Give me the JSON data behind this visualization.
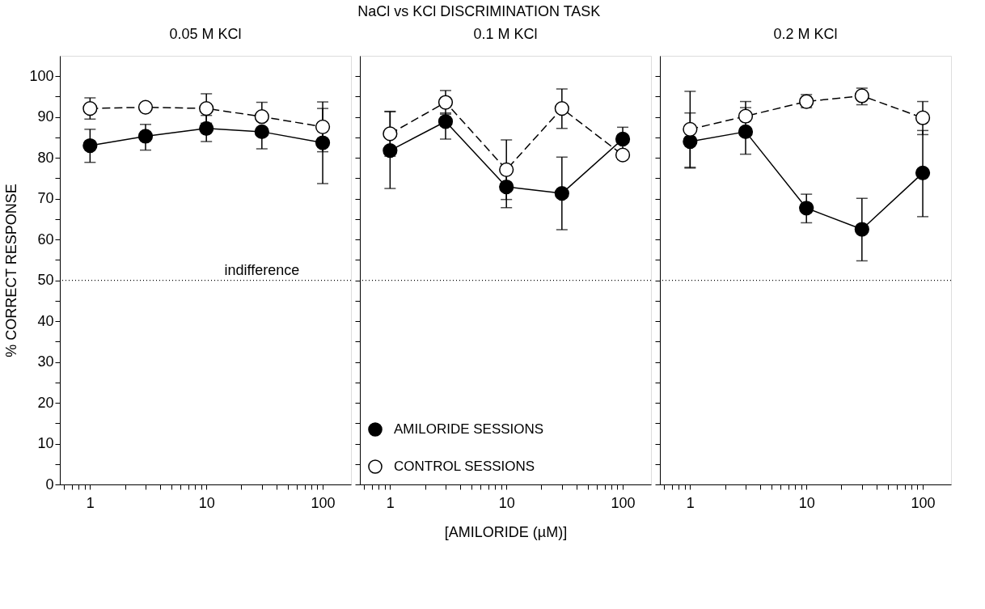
{
  "chart_data": [
    {
      "type": "line",
      "subtitle": "0.05 M KCl",
      "ylabel": "% CORRECT RESPONSE",
      "x": [
        1,
        3,
        10,
        30,
        100
      ],
      "log": "x",
      "xlim": [
        0.55,
        175
      ],
      "ylim": [
        0,
        105
      ],
      "xticks": [
        {
          "value": 0.6,
          "label": null
        },
        {
          "value": 0.7,
          "label": null
        },
        {
          "value": 0.8,
          "label": null
        },
        {
          "value": 0.9,
          "label": null
        },
        1,
        {
          "value": 2,
          "label": null
        },
        {
          "value": 3,
          "label": null
        },
        {
          "value": 4,
          "label": null
        },
        {
          "value": 5,
          "label": null
        },
        {
          "value": 6,
          "label": null
        },
        {
          "value": 7,
          "label": null
        },
        {
          "value": 8,
          "label": null
        },
        {
          "value": 9,
          "label": null
        },
        10,
        {
          "value": 20,
          "label": null
        },
        {
          "value": 30,
          "label": null
        },
        {
          "value": 40,
          "label": null
        },
        {
          "value": 50,
          "label": null
        },
        {
          "value": 60,
          "label": null
        },
        {
          "value": 70,
          "label": null
        },
        {
          "value": 80,
          "label": null
        },
        {
          "value": 90,
          "label": null
        },
        100
      ],
      "yticks": [
        0,
        {
          "value": 5,
          "label": null
        },
        10,
        {
          "value": 15,
          "label": null
        },
        20,
        {
          "value": 25,
          "label": null
        },
        30,
        {
          "value": 35,
          "label": null
        },
        40,
        {
          "value": 45,
          "label": null
        },
        50,
        {
          "value": 55,
          "label": null
        },
        60,
        {
          "value": 65,
          "label": null
        },
        70,
        {
          "value": 75,
          "label": null
        },
        80,
        {
          "value": 85,
          "label": null
        },
        90,
        {
          "value": 95,
          "label": null
        },
        100
      ],
      "grid": false,
      "marker": "circle",
      "series": [
        {
          "color": "#000000",
          "line_style": "solid",
          "values": [
            83.0,
            85.3,
            87.2,
            86.4,
            83.7
          ],
          "errors": [
            [
              78.9,
              87.0
            ],
            [
              81.9,
              88.2
            ],
            [
              84.0,
              90.4
            ],
            [
              82.2,
              86.4
            ],
            [
              73.7,
              92.1
            ]
          ]
        },
        {
          "color": "#ffffff",
          "line_style": "dashed",
          "values": [
            92.1,
            92.4,
            92.1,
            90.1,
            87.6
          ],
          "errors": [
            [
              89.5,
              94.7
            ],
            null,
            [
              88.5,
              95.7
            ],
            [
              90.1,
              93.6
            ],
            [
              81.5,
              93.7
            ]
          ]
        }
      ],
      "ref_lines": [
        {
          "axis": "y",
          "value": 50,
          "line_style": "dotted"
        }
      ],
      "annotations": [
        {
          "text": "indifference",
          "x": 30,
          "y": 50
        }
      ]
    },
    {
      "type": "line",
      "title": "NaCl vs KCl DISCRIMINATION TASK",
      "subtitle": "0.1 M KCl",
      "xlabel": "[AMILORIDE (µM)]",
      "x": [
        1,
        3,
        10,
        30,
        100
      ],
      "log": "x",
      "xlim": [
        0.55,
        175
      ],
      "ylim": [
        0,
        105
      ],
      "tick_labels": "x",
      "xticks": [
        {
          "value": 0.6,
          "label": null
        },
        {
          "value": 0.7,
          "label": null
        },
        {
          "value": 0.8,
          "label": null
        },
        {
          "value": 0.9,
          "label": null
        },
        1,
        {
          "value": 2,
          "label": null
        },
        {
          "value": 3,
          "label": null
        },
        {
          "value": 4,
          "label": null
        },
        {
          "value": 5,
          "label": null
        },
        {
          "value": 6,
          "label": null
        },
        {
          "value": 7,
          "label": null
        },
        {
          "value": 8,
          "label": null
        },
        {
          "value": 9,
          "label": null
        },
        10,
        {
          "value": 20,
          "label": null
        },
        {
          "value": 30,
          "label": null
        },
        {
          "value": 40,
          "label": null
        },
        {
          "value": 50,
          "label": null
        },
        {
          "value": 60,
          "label": null
        },
        {
          "value": 70,
          "label": null
        },
        {
          "value": 80,
          "label": null
        },
        {
          "value": 90,
          "label": null
        },
        100
      ],
      "yticks": [
        0,
        {
          "value": 5,
          "label": null
        },
        10,
        {
          "value": 15,
          "label": null
        },
        20,
        {
          "value": 25,
          "label": null
        },
        30,
        {
          "value": 35,
          "label": null
        },
        40,
        {
          "value": 45,
          "label": null
        },
        50,
        {
          "value": 55,
          "label": null
        },
        60,
        {
          "value": 65,
          "label": null
        },
        70,
        {
          "value": 75,
          "label": null
        },
        80,
        {
          "value": 85,
          "label": null
        },
        90,
        {
          "value": 95,
          "label": null
        },
        100
      ],
      "grid": false,
      "marker": "circle",
      "legend": "bottom left",
      "series": [
        {
          "name": "AMILORIDE SESSIONS",
          "color": "#000000",
          "line_style": "solid",
          "values": [
            81.8,
            88.9,
            72.9,
            71.3,
            84.6
          ],
          "errors": [
            [
              72.5,
              91.3
            ],
            [
              84.6,
              91.0
            ],
            [
              67.8,
              78.0
            ],
            [
              62.4,
              80.2
            ],
            [
              81.7,
              87.5
            ]
          ]
        },
        {
          "name": "CONTROL SESSIONS",
          "color": "#ffffff",
          "line_style": "dashed",
          "values": [
            85.9,
            93.6,
            77.1,
            92.1,
            80.7
          ],
          "errors": [
            [
              80.4,
              91.4
            ],
            [
              90.7,
              96.5
            ],
            [
              69.8,
              84.4
            ],
            [
              87.2,
              96.9
            ],
            null
          ]
        }
      ],
      "ref_lines": [
        {
          "axis": "y",
          "value": 50,
          "line_style": "dotted"
        }
      ]
    },
    {
      "type": "line",
      "subtitle": "0.2 M KCl",
      "x": [
        1,
        3,
        10,
        30,
        100
      ],
      "log": "x",
      "xlim": [
        0.55,
        175
      ],
      "ylim": [
        0,
        105
      ],
      "tick_labels": "x",
      "xticks": [
        {
          "value": 0.6,
          "label": null
        },
        {
          "value": 0.7,
          "label": null
        },
        {
          "value": 0.8,
          "label": null
        },
        {
          "value": 0.9,
          "label": null
        },
        1,
        {
          "value": 2,
          "label": null
        },
        {
          "value": 3,
          "label": null
        },
        {
          "value": 4,
          "label": null
        },
        {
          "value": 5,
          "label": null
        },
        {
          "value": 6,
          "label": null
        },
        {
          "value": 7,
          "label": null
        },
        {
          "value": 8,
          "label": null
        },
        {
          "value": 9,
          "label": null
        },
        10,
        {
          "value": 20,
          "label": null
        },
        {
          "value": 30,
          "label": null
        },
        {
          "value": 40,
          "label": null
        },
        {
          "value": 50,
          "label": null
        },
        {
          "value": 60,
          "label": null
        },
        {
          "value": 70,
          "label": null
        },
        {
          "value": 80,
          "label": null
        },
        {
          "value": 90,
          "label": null
        },
        100
      ],
      "yticks": [
        0,
        {
          "value": 5,
          "label": null
        },
        10,
        {
          "value": 15,
          "label": null
        },
        20,
        {
          "value": 25,
          "label": null
        },
        30,
        {
          "value": 35,
          "label": null
        },
        40,
        {
          "value": 45,
          "label": null
        },
        50,
        {
          "value": 55,
          "label": null
        },
        60,
        {
          "value": 65,
          "label": null
        },
        70,
        {
          "value": 75,
          "label": null
        },
        80,
        {
          "value": 85,
          "label": null
        },
        90,
        {
          "value": 95,
          "label": null
        },
        100
      ],
      "grid": false,
      "marker": "circle",
      "series": [
        {
          "color": "#000000",
          "line_style": "solid",
          "values": [
            84.0,
            86.4,
            67.7,
            62.5,
            76.3
          ],
          "errors": [
            [
              77.5,
              91.0
            ],
            [
              80.9,
              92.3
            ],
            [
              64.1,
              71.1
            ],
            [
              54.8,
              70.1
            ],
            [
              65.6,
              86.7
            ]
          ]
        },
        {
          "color": "#ffffff",
          "line_style": "dashed",
          "values": [
            87.0,
            90.2,
            93.8,
            95.2,
            89.8
          ],
          "errors": [
            [
              77.7,
              96.3
            ],
            [
              90.2,
              93.8
            ],
            [
              92.3,
              95.5
            ],
            [
              93.0,
              97.1
            ],
            [
              85.7,
              93.8
            ]
          ]
        }
      ],
      "ref_lines": [
        {
          "axis": "y",
          "value": 50,
          "line_style": "dotted"
        }
      ]
    }
  ]
}
